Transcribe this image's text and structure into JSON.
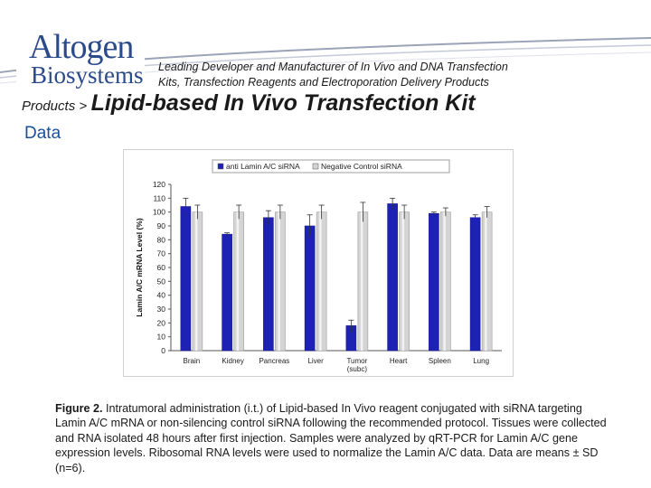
{
  "header": {
    "logo_line1": "Altogen",
    "logo_line2": "Biosystems",
    "tagline_line1": "Leading Developer and Manufacturer of In Vivo and DNA Transfection",
    "tagline_line2": "Kits, Transfection Reagents and Electroporation Delivery Products"
  },
  "breadcrumb": {
    "label": "Products >"
  },
  "page_title": "Lipid-based In Vivo Transfection Kit",
  "subtitle": "Data",
  "colors": {
    "series1": "#1e22b4",
    "series2": "#d4d4d4",
    "accent": "#2b4a8a",
    "subtitle": "#1a4f9a"
  },
  "chart_data": {
    "type": "bar",
    "categories": [
      "Brain",
      "Kidney",
      "Pancreas",
      "Liver",
      "Tumor\n(subc)",
      "Heart",
      "Spleen",
      "Lung"
    ],
    "series": [
      {
        "name": "anti Lamin A/C siRNA",
        "values": [
          104,
          84,
          96,
          90,
          18,
          106,
          99,
          96
        ],
        "errors": [
          6,
          1,
          5,
          8,
          4,
          4,
          1,
          2
        ]
      },
      {
        "name": "Negative Control siRNA",
        "values": [
          100,
          100,
          100,
          100,
          100,
          100,
          100,
          100
        ],
        "errors": [
          5,
          5,
          5,
          5,
          7,
          5,
          3,
          4
        ]
      }
    ],
    "ylabel": "Lamin A/C mRNA Level (%)",
    "xlabel": "",
    "ylim": [
      0,
      120
    ],
    "yticks": [
      0,
      10,
      20,
      30,
      40,
      50,
      60,
      70,
      80,
      90,
      100,
      110,
      120
    ],
    "grid": false,
    "legend": "top"
  },
  "caption": {
    "label": "Figure 2.",
    "text": " Intratumoral administration (i.t.) of Lipid-based In Vivo reagent conjugated with siRNA targeting Lamin A/C mRNA or non-silencing control siRNA following the recommended protocol. Tissues were collected and RNA isolated 48 hours after first injection. Samples were analyzed by qRT-PCR for Lamin A/C gene expression levels. Ribosomal RNA levels were used to normalize the Lamin A/C data. Data are means ± SD (n=6)."
  }
}
